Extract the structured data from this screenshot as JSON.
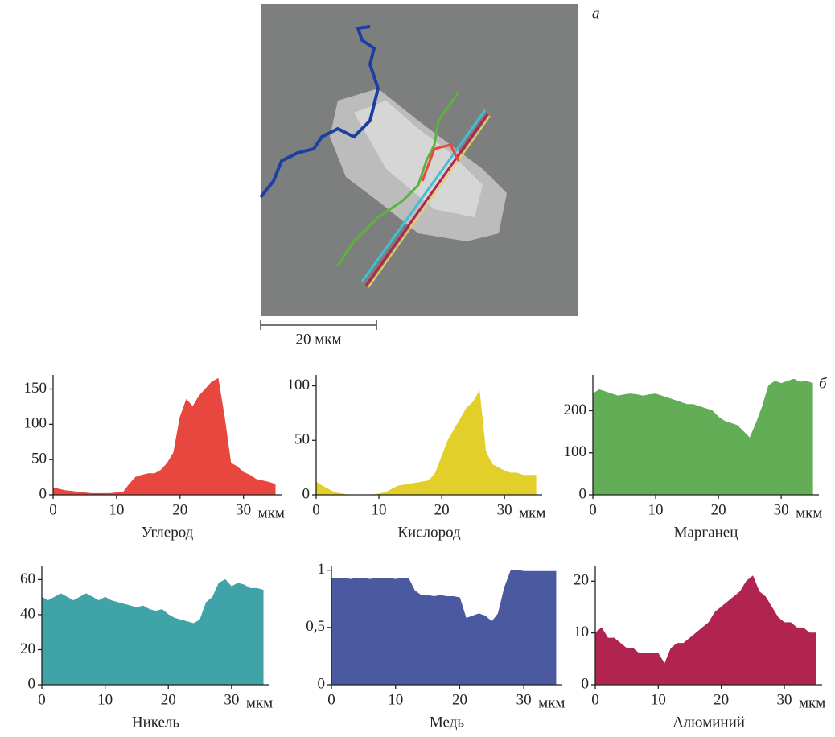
{
  "labels": {
    "panel_a": "а",
    "panel_b": "б",
    "scale_bar": "20 мкм"
  },
  "chart_data": [
    {
      "type": "area",
      "title": "Углерод",
      "xlabel": "мкм",
      "color": "#e8473f",
      "x": [
        0,
        1,
        2,
        3,
        4,
        5,
        6,
        7,
        8,
        9,
        10,
        11,
        12,
        13,
        14,
        15,
        16,
        17,
        18,
        19,
        20,
        21,
        22,
        23,
        24,
        25,
        26,
        27,
        28,
        29,
        30,
        31,
        32,
        33,
        34,
        35
      ],
      "values": [
        10,
        8,
        6,
        5,
        4,
        3,
        2,
        2,
        2,
        2,
        3,
        3,
        15,
        25,
        28,
        30,
        30,
        35,
        45,
        60,
        110,
        135,
        125,
        140,
        150,
        160,
        165,
        110,
        45,
        40,
        32,
        28,
        22,
        20,
        18,
        15
      ],
      "xlim": [
        0,
        36
      ],
      "xticks": [
        0,
        10,
        20,
        30
      ],
      "ylim": [
        0,
        170
      ],
      "yticks": [
        0,
        50,
        100,
        150
      ]
    },
    {
      "type": "area",
      "title": "Кислород",
      "xlabel": "мкм",
      "color": "#e2cf2a",
      "x": [
        0,
        1,
        2,
        3,
        4,
        5,
        6,
        7,
        8,
        9,
        10,
        11,
        12,
        13,
        14,
        15,
        16,
        17,
        18,
        19,
        20,
        21,
        22,
        23,
        24,
        25,
        26,
        27,
        28,
        29,
        30,
        31,
        32,
        33,
        34,
        35
      ],
      "values": [
        12,
        8,
        5,
        2,
        1,
        0,
        0,
        0,
        0,
        0,
        1,
        2,
        5,
        8,
        9,
        10,
        11,
        12,
        13,
        20,
        35,
        50,
        60,
        70,
        80,
        85,
        95,
        40,
        28,
        25,
        22,
        20,
        20,
        18,
        18,
        18
      ],
      "xlim": [
        0,
        36
      ],
      "xticks": [
        0,
        10,
        20,
        30
      ],
      "ylim": [
        0,
        110
      ],
      "yticks": [
        0,
        50,
        100
      ]
    },
    {
      "type": "area",
      "title": "Марганец",
      "xlabel": "мкм",
      "color": "#62ad55",
      "x": [
        0,
        1,
        2,
        3,
        4,
        5,
        6,
        7,
        8,
        9,
        10,
        11,
        12,
        13,
        14,
        15,
        16,
        17,
        18,
        19,
        20,
        21,
        22,
        23,
        24,
        25,
        26,
        27,
        28,
        29,
        30,
        31,
        32,
        33,
        34,
        35
      ],
      "values": [
        240,
        250,
        245,
        240,
        235,
        238,
        240,
        238,
        235,
        238,
        240,
        235,
        230,
        225,
        220,
        215,
        215,
        210,
        205,
        200,
        185,
        175,
        170,
        165,
        150,
        135,
        170,
        210,
        260,
        270,
        265,
        270,
        275,
        268,
        270,
        265
      ],
      "xlim": [
        0,
        36
      ],
      "xticks": [
        0,
        10,
        20,
        30
      ],
      "ylim": [
        0,
        285
      ],
      "yticks": [
        0,
        100,
        200
      ]
    },
    {
      "type": "area",
      "title": "Никель",
      "xlabel": "мкм",
      "color": "#3fa3a8",
      "x": [
        0,
        1,
        2,
        3,
        4,
        5,
        6,
        7,
        8,
        9,
        10,
        11,
        12,
        13,
        14,
        15,
        16,
        17,
        18,
        19,
        20,
        21,
        22,
        23,
        24,
        25,
        26,
        27,
        28,
        29,
        30,
        31,
        32,
        33,
        34,
        35
      ],
      "values": [
        50,
        48,
        50,
        52,
        50,
        48,
        50,
        52,
        50,
        48,
        50,
        48,
        47,
        46,
        45,
        44,
        45,
        43,
        42,
        43,
        40,
        38,
        37,
        36,
        35,
        37,
        47,
        50,
        58,
        60,
        56,
        58,
        57,
        55,
        55,
        54
      ],
      "xlim": [
        0,
        36
      ],
      "xticks": [
        0,
        10,
        20,
        30
      ],
      "ylim": [
        0,
        68
      ],
      "yticks": [
        0,
        20,
        40,
        60
      ]
    },
    {
      "type": "area",
      "title": "Медь",
      "xlabel": "мкм",
      "color": "#4a59a0",
      "x": [
        0,
        1,
        2,
        3,
        4,
        5,
        6,
        7,
        8,
        9,
        10,
        11,
        12,
        13,
        14,
        15,
        16,
        17,
        18,
        19,
        20,
        21,
        22,
        23,
        24,
        25,
        26,
        27,
        28,
        29,
        30,
        31,
        32,
        33,
        34,
        35
      ],
      "values": [
        0.93,
        0.93,
        0.93,
        0.92,
        0.93,
        0.93,
        0.92,
        0.93,
        0.93,
        0.93,
        0.92,
        0.93,
        0.93,
        0.82,
        0.78,
        0.78,
        0.77,
        0.78,
        0.77,
        0.77,
        0.76,
        0.58,
        0.6,
        0.62,
        0.6,
        0.55,
        0.62,
        0.85,
        1.0,
        1.0,
        0.99,
        0.99,
        0.99,
        0.99,
        0.99,
        0.99
      ],
      "xlim": [
        0,
        36
      ],
      "xticks": [
        0,
        10,
        20,
        30
      ],
      "ylim": [
        0,
        1.04
      ],
      "yticks": [
        0,
        {
          "value": 0.5,
          "label": "0,5"
        },
        1
      ]
    },
    {
      "type": "area",
      "title": "Алюминий",
      "xlabel": "мкм",
      "color": "#b0244f",
      "x": [
        0,
        1,
        2,
        3,
        4,
        5,
        6,
        7,
        8,
        9,
        10,
        11,
        12,
        13,
        14,
        15,
        16,
        17,
        18,
        19,
        20,
        21,
        22,
        23,
        24,
        25,
        26,
        27,
        28,
        29,
        30,
        31,
        32,
        33,
        34,
        35
      ],
      "values": [
        10,
        11,
        9,
        9,
        8,
        7,
        7,
        6,
        6,
        6,
        6,
        4,
        7,
        8,
        8,
        9,
        10,
        11,
        12,
        14,
        15,
        16,
        17,
        18,
        20,
        21,
        18,
        17,
        15,
        13,
        12,
        12,
        11,
        11,
        10,
        10
      ],
      "xlim": [
        0,
        36
      ],
      "xticks": [
        0,
        10,
        20,
        30
      ],
      "ylim": [
        0,
        23
      ],
      "yticks": [
        0,
        10,
        20
      ]
    }
  ]
}
